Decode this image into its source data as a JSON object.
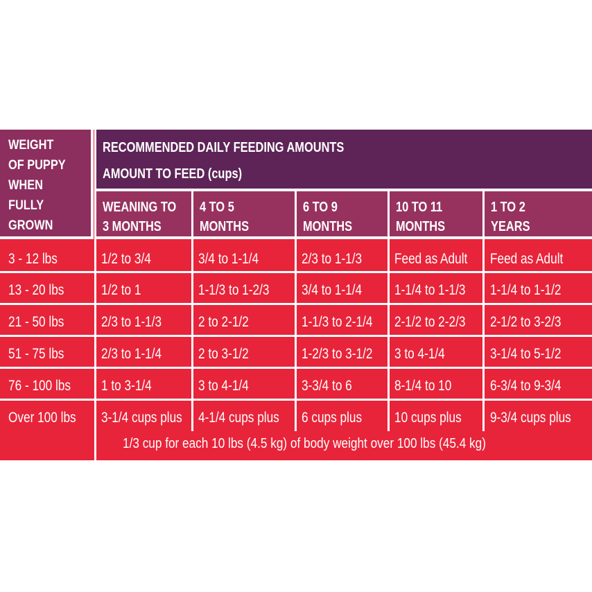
{
  "weight_header": [
    "WEIGHT",
    "OF PUPPY",
    "WHEN",
    "FULLY",
    "GROWN"
  ],
  "title": "RECOMMENDED DAILY FEEDING AMOUNTS",
  "subtitle": "AMOUNT TO FEED (cups)",
  "age_headers": [
    [
      "WEANING TO",
      "3 MONTHS"
    ],
    [
      "4 TO 5",
      "MONTHS"
    ],
    [
      "6 TO 9",
      "MONTHS"
    ],
    [
      "10 TO 11",
      "MONTHS"
    ],
    [
      "1 TO 2",
      "YEARS"
    ]
  ],
  "rows": [
    [
      "3 - 12 lbs",
      "1/2 to 3/4",
      "3/4 to 1-1/4",
      "2/3 to 1-1/3",
      "Feed as Adult",
      "Feed as Adult"
    ],
    [
      "13 - 20 lbs",
      "1/2 to 1",
      "1-1/3 to 1-2/3",
      "3/4 to 1-1/4",
      "1-1/4 to 1-1/3",
      "1-1/4 to 1-1/2"
    ],
    [
      "21 - 50 lbs",
      "2/3 to 1-1/3",
      "2 to 2-1/2",
      "1-1/3 to 2-1/4",
      "2-1/2 to 2-2/3",
      "2-1/2 to 3-2/3"
    ],
    [
      "51 - 75 lbs",
      "2/3 to 1-1/4",
      "2 to 3-1/2",
      "1-2/3 to 3-1/2",
      "3 to 4-1/4",
      "3-1/4 to 5-1/2"
    ],
    [
      "76 - 100 lbs",
      "1 to 3-1/4",
      "3 to 4-1/4",
      "3-3/4 to 6",
      "8-1/4 to 10",
      "6-3/4 to 9-3/4"
    ],
    [
      "Over 100 lbs",
      "3-1/4 cups plus",
      "4-1/4 cups plus",
      "6 cups plus",
      "10 cups plus",
      "9-3/4 cups plus"
    ]
  ],
  "footnote": "1/3 cup for each 10 lbs (4.5 kg) of body weight over 100 lbs (45.4 kg)",
  "colors": {
    "row_red": "#e8243a",
    "header_purple": "#5e2457",
    "age_header_magenta": "#97325f",
    "weight_header_plum": "#8c2e5e"
  }
}
